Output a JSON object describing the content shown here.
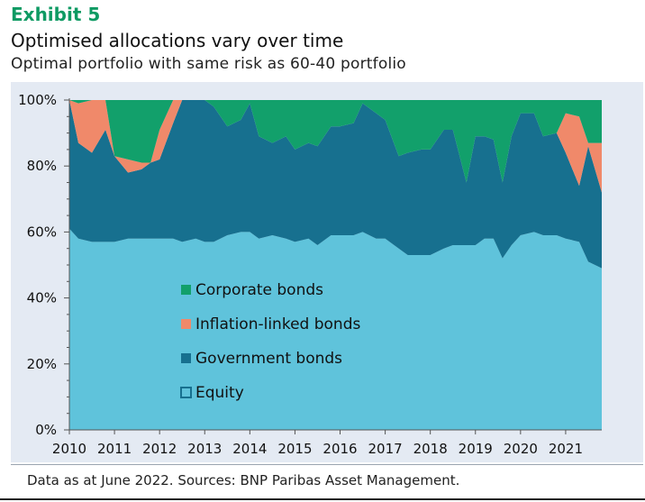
{
  "header": {
    "exhibit": "Exhibit 5",
    "title": "Optimised allocations vary over time",
    "subtitle": "Optimal portfolio with same risk as 60-40 portfolio"
  },
  "footer": {
    "source": "Data as at June 2022. Sources: BNP Paribas Asset Management."
  },
  "colors": {
    "equity": "#5fc3db",
    "government": "#17708f",
    "inflation": "#f0896a",
    "corporate": "#12a06b",
    "panel": "#e4eaf3"
  },
  "chart_data": {
    "type": "area",
    "stacked": true,
    "title": "Optimised allocations vary over time",
    "subtitle": "Optimal portfolio with same risk as 60-40 portfolio",
    "xlabel": "",
    "ylabel": "",
    "xlim": [
      2010,
      2021.8
    ],
    "ylim": [
      0,
      100
    ],
    "x_ticks": [
      "2010",
      "2011",
      "2012",
      "2013",
      "2014",
      "2015",
      "2016",
      "2017",
      "2018",
      "2019",
      "2020",
      "2021"
    ],
    "y_ticks": [
      "0%",
      "20%",
      "40%",
      "60%",
      "80%",
      "100%"
    ],
    "legend_position": "center-left",
    "x": [
      2010,
      2010.2,
      2010.5,
      2010.8,
      2011.0,
      2011.3,
      2011.6,
      2011.8,
      2012.0,
      2012.3,
      2012.5,
      2012.8,
      2013.0,
      2013.2,
      2013.5,
      2013.8,
      2014.0,
      2014.2,
      2014.5,
      2014.8,
      2015.0,
      2015.3,
      2015.5,
      2015.8,
      2016.0,
      2016.3,
      2016.5,
      2016.8,
      2017.0,
      2017.3,
      2017.5,
      2017.8,
      2018.0,
      2018.3,
      2018.5,
      2018.8,
      2019.0,
      2019.2,
      2019.4,
      2019.6,
      2019.8,
      2020.0,
      2020.3,
      2020.5,
      2020.8,
      2021.0,
      2021.3,
      2021.5,
      2021.8
    ],
    "series": [
      {
        "name": "Equity",
        "legend_label": "Equity",
        "values": [
          61,
          58,
          57,
          57,
          57,
          58,
          58,
          58,
          58,
          58,
          57,
          58,
          57,
          57,
          59,
          60,
          60,
          58,
          59,
          58,
          57,
          58,
          56,
          59,
          59,
          59,
          60,
          58,
          58,
          55,
          53,
          53,
          53,
          55,
          56,
          56,
          56,
          58,
          58,
          52,
          56,
          59,
          60,
          59,
          59,
          58,
          57,
          51,
          49
        ]
      },
      {
        "name": "Government bonds",
        "legend_label": "Government bonds",
        "values": [
          39,
          29,
          27,
          34,
          26,
          20,
          21,
          23,
          24,
          35,
          43,
          42,
          43,
          41,
          33,
          34,
          39,
          31,
          28,
          31,
          28,
          29,
          30,
          33,
          33,
          34,
          39,
          38,
          36,
          28,
          31,
          32,
          32,
          36,
          35,
          19,
          33,
          31,
          30,
          23,
          33,
          37,
          36,
          30,
          31,
          26,
          17,
          35,
          23
        ]
      },
      {
        "name": "Inflation-linked bonds",
        "legend_label": "Inflation-linked bonds",
        "values": [
          0,
          12,
          16,
          9,
          0,
          4,
          2,
          0,
          9,
          7,
          0,
          0,
          0,
          0,
          0,
          0,
          0,
          0,
          0,
          0,
          0,
          0,
          0,
          0,
          0,
          0,
          0,
          0,
          0,
          0,
          0,
          0,
          0,
          0,
          0,
          0,
          0,
          0,
          0,
          0,
          0,
          0,
          0,
          0,
          0,
          12,
          21,
          1,
          15
        ]
      },
      {
        "name": "Corporate bonds",
        "legend_label": "Corporate bonds",
        "values": [
          0,
          1,
          0,
          0,
          17,
          18,
          19,
          19,
          9,
          0,
          0,
          0,
          0,
          2,
          8,
          6,
          1,
          11,
          13,
          11,
          15,
          13,
          14,
          8,
          8,
          7,
          1,
          4,
          6,
          17,
          16,
          15,
          15,
          9,
          9,
          25,
          11,
          11,
          12,
          25,
          11,
          4,
          4,
          11,
          10,
          4,
          5,
          13,
          13
        ]
      }
    ]
  }
}
